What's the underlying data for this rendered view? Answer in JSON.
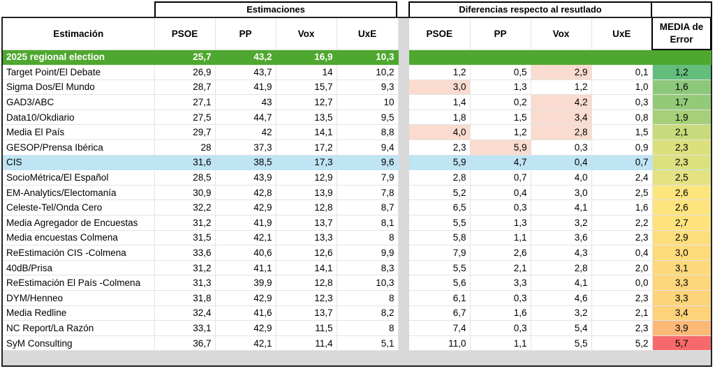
{
  "groups": {
    "estimaciones": "Estimaciones",
    "diferencias": "Diferencias respecto al resutlado"
  },
  "headers": {
    "estimacion": "Estimación",
    "est_cols": [
      "PSOE",
      "PP",
      "Vox",
      "UxE"
    ],
    "diff_cols": [
      "PSOE",
      "PP",
      "Vox",
      "UxE"
    ],
    "media_line1": "MEDIA de",
    "media_line2": "Error"
  },
  "election": {
    "label": "2025 regional election",
    "values": [
      "25,7",
      "43,2",
      "16,9",
      "10,3"
    ],
    "color": "#4ea72e"
  },
  "rows": [
    {
      "name": "Target Point/El Debate",
      "est": [
        "26,9",
        "43,7",
        "14",
        "10,2"
      ],
      "diff": [
        "1,2",
        "0,5",
        "2,9",
        "0,1"
      ],
      "hl": [
        false,
        false,
        true,
        false
      ],
      "media": "1,2",
      "media_color": "#63be7b"
    },
    {
      "name": "Sigma Dos/El Mundo",
      "est": [
        "28,7",
        "41,9",
        "15,7",
        "9,3"
      ],
      "diff": [
        "3,0",
        "1,3",
        "1,2",
        "1,0"
      ],
      "hl": [
        true,
        false,
        false,
        false
      ],
      "media": "1,6",
      "media_color": "#8cc87a"
    },
    {
      "name": "GAD3/ABC",
      "est": [
        "27,1",
        "43",
        "12,7",
        "10"
      ],
      "diff": [
        "1,4",
        "0,2",
        "4,2",
        "0,3"
      ],
      "hl": [
        false,
        false,
        true,
        false
      ],
      "media": "1,7",
      "media_color": "#93ca79"
    },
    {
      "name": "Data10/Okdiario",
      "est": [
        "27,5",
        "44,7",
        "13,5",
        "9,5"
      ],
      "diff": [
        "1,8",
        "1,5",
        "3,4",
        "0,8"
      ],
      "hl": [
        false,
        false,
        true,
        false
      ],
      "media": "1,9",
      "media_color": "#a5cf78"
    },
    {
      "name": "Media El País",
      "est": [
        "29,7",
        "42",
        "14,1",
        "8,8"
      ],
      "diff": [
        "4,0",
        "1,2",
        "2,8",
        "1,5"
      ],
      "hl": [
        true,
        false,
        true,
        false
      ],
      "media": "2,1",
      "media_color": "#c8da7b"
    },
    {
      "name": "GESOP/Prensa Ibérica",
      "est": [
        "28",
        "37,3",
        "17,2",
        "9,4"
      ],
      "diff": [
        "2,3",
        "5,9",
        "0,3",
        "0,9"
      ],
      "hl": [
        false,
        true,
        false,
        false
      ],
      "media": "2,3",
      "media_color": "#dbe07d"
    },
    {
      "name": "CIS",
      "est": [
        "31,6",
        "38,5",
        "17,3",
        "9,6"
      ],
      "diff": [
        "5,9",
        "4,7",
        "0,4",
        "0,7"
      ],
      "hl": [
        false,
        false,
        false,
        false
      ],
      "media": "2,3",
      "media_color": "#dde07e",
      "cis": true
    },
    {
      "name": "SocioMétrica/El Español",
      "est": [
        "28,5",
        "43,9",
        "12,9",
        "7,9"
      ],
      "diff": [
        "2,8",
        "0,7",
        "4,0",
        "2,4"
      ],
      "hl": [
        false,
        false,
        false,
        false
      ],
      "media": "2,5",
      "media_color": "#e4e283"
    },
    {
      "name": "EM-Analytics/Electomanía",
      "est": [
        "30,9",
        "42,8",
        "13,9",
        "7,8"
      ],
      "diff": [
        "5,2",
        "0,4",
        "3,0",
        "2,5"
      ],
      "hl": [
        false,
        false,
        false,
        false
      ],
      "media": "2,6",
      "media_color": "#fde57e"
    },
    {
      "name": "Celeste-Tel/Onda Cero",
      "est": [
        "32,2",
        "42,9",
        "12,8",
        "8,7"
      ],
      "diff": [
        "6,5",
        "0,3",
        "4,1",
        "1,6"
      ],
      "hl": [
        false,
        false,
        false,
        false
      ],
      "media": "2,6",
      "media_color": "#fde47e"
    },
    {
      "name": "Media Agregador de Encuestas",
      "est": [
        "31,2",
        "41,9",
        "13,7",
        "8,1"
      ],
      "diff": [
        "5,5",
        "1,3",
        "3,2",
        "2,2"
      ],
      "hl": [
        false,
        false,
        false,
        false
      ],
      "media": "2,7",
      "media_color": "#fde27d"
    },
    {
      "name": "Media encuestas Colmena",
      "est": [
        "31,5",
        "42,1",
        "13,3",
        "8"
      ],
      "diff": [
        "5,8",
        "1,1",
        "3,6",
        "2,3"
      ],
      "hl": [
        false,
        false,
        false,
        false
      ],
      "media": "2,9",
      "media_color": "#fdde7c"
    },
    {
      "name": "ReEstimación CIS -Colmena",
      "est": [
        "33,6",
        "40,6",
        "12,6",
        "9,9"
      ],
      "diff": [
        "7,9",
        "2,6",
        "4,3",
        "0,4"
      ],
      "hl": [
        false,
        false,
        false,
        false
      ],
      "media": "3,0",
      "media_color": "#fddb7b"
    },
    {
      "name": "40dB/Prisa",
      "est": [
        "31,2",
        "41,1",
        "14,1",
        "8,3"
      ],
      "diff": [
        "5,5",
        "2,1",
        "2,8",
        "2,0"
      ],
      "hl": [
        false,
        false,
        false,
        false
      ],
      "media": "3,1",
      "media_color": "#fdd97b"
    },
    {
      "name": "ReEstimación El País -Colmena",
      "est": [
        "31,3",
        "39,9",
        "12,8",
        "10,3"
      ],
      "diff": [
        "5,6",
        "3,3",
        "4,1",
        "0,0"
      ],
      "hl": [
        false,
        false,
        false,
        false
      ],
      "media": "3,3",
      "media_color": "#fdd57a"
    },
    {
      "name": "DYM/Henneo",
      "est": [
        "31,8",
        "42,9",
        "12,3",
        "8"
      ],
      "diff": [
        "6,1",
        "0,3",
        "4,6",
        "2,3"
      ],
      "hl": [
        false,
        false,
        false,
        false
      ],
      "media": "3,3",
      "media_color": "#fdd47a"
    },
    {
      "name": "Media Redline",
      "est": [
        "32,4",
        "41,6",
        "13,7",
        "8,2"
      ],
      "diff": [
        "6,7",
        "1,6",
        "3,2",
        "2,1"
      ],
      "hl": [
        false,
        false,
        false,
        false
      ],
      "media": "3,4",
      "media_color": "#fdd27a"
    },
    {
      "name": "NC Report/La Razón",
      "est": [
        "33,1",
        "42,9",
        "11,5",
        "8"
      ],
      "diff": [
        "7,4",
        "0,3",
        "5,4",
        "2,3"
      ],
      "hl": [
        false,
        false,
        false,
        false
      ],
      "media": "3,9",
      "media_color": "#fcb877"
    },
    {
      "name": "SyM Consulting",
      "est": [
        "36,7",
        "42,1",
        "11,4",
        "5,1"
      ],
      "diff": [
        "11,0",
        "1,1",
        "5,5",
        "5,2"
      ],
      "hl": [
        false,
        false,
        false,
        false
      ],
      "media": "5,7",
      "media_color": "#f8696b"
    }
  ],
  "colors": {
    "highlight": "#f9dccf",
    "cis_row": "#bfe4f3",
    "separator": "#d9d9d9"
  }
}
